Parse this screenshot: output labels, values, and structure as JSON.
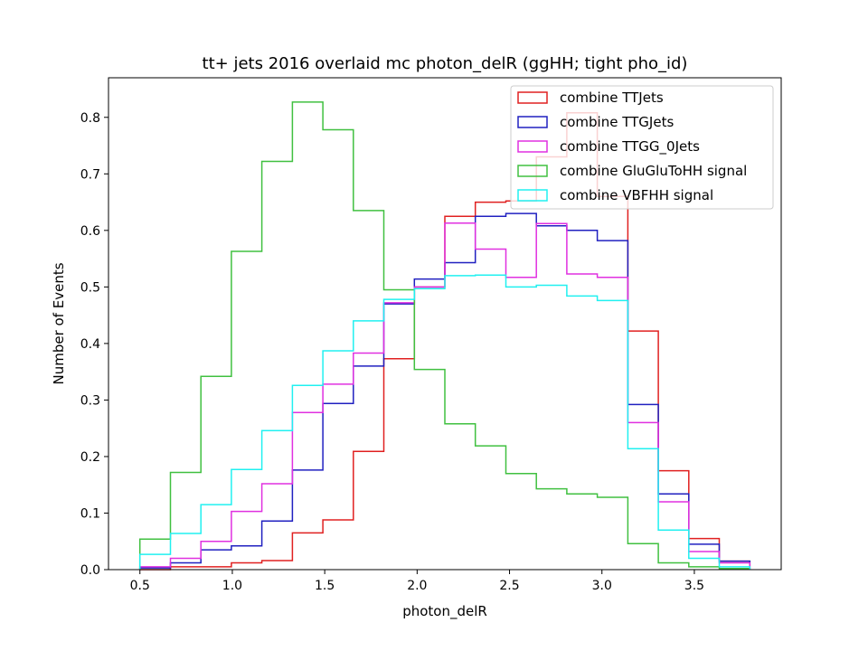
{
  "chart_data": {
    "type": "histogram",
    "title": "tt+ jets 2016 overlaid mc photon_delR (ggHH; tight pho_id)",
    "xlabel": "photon_delR",
    "ylabel": "Number of Events",
    "xlim": [
      0.33,
      3.97
    ],
    "ylim": [
      0.0,
      0.87
    ],
    "xticks": [
      0.5,
      1.0,
      1.5,
      2.0,
      2.5,
      3.0,
      3.5
    ],
    "yticks": [
      0.0,
      0.1,
      0.2,
      0.3,
      0.4,
      0.5,
      0.6,
      0.7,
      0.8
    ],
    "bin_edges": [
      0.5,
      0.665,
      0.83,
      0.995,
      1.16,
      1.325,
      1.49,
      1.655,
      1.82,
      1.985,
      2.15,
      2.315,
      2.48,
      2.645,
      2.81,
      2.975,
      3.14,
      3.305,
      3.47,
      3.635,
      3.8
    ],
    "grid": false,
    "legend_position": "top-right",
    "series": [
      {
        "name": "combine TTJets",
        "color": "#e02020",
        "values": [
          0.0,
          0.005,
          0.005,
          0.012,
          0.016,
          0.065,
          0.088,
          0.209,
          0.373,
          0.5,
          0.625,
          0.65,
          0.652,
          0.73,
          0.808,
          0.66,
          0.422,
          0.175,
          0.055,
          0.015
        ]
      },
      {
        "name": "combine TTGJets",
        "color": "#2020c0",
        "values": [
          0.003,
          0.012,
          0.035,
          0.042,
          0.086,
          0.176,
          0.294,
          0.36,
          0.47,
          0.514,
          0.543,
          0.625,
          0.63,
          0.608,
          0.6,
          0.582,
          0.292,
          0.134,
          0.045,
          0.015
        ]
      },
      {
        "name": "combine TTGG_0Jets",
        "color": "#e030e0",
        "values": [
          0.005,
          0.02,
          0.05,
          0.103,
          0.152,
          0.278,
          0.328,
          0.383,
          0.472,
          0.5,
          0.613,
          0.567,
          0.517,
          0.612,
          0.523,
          0.517,
          0.26,
          0.12,
          0.032,
          0.012
        ]
      },
      {
        "name": "combine GluGluToHH signal",
        "color": "#40c040",
        "values": [
          0.054,
          0.172,
          0.342,
          0.563,
          0.722,
          0.827,
          0.778,
          0.635,
          0.495,
          0.354,
          0.258,
          0.219,
          0.17,
          0.143,
          0.134,
          0.128,
          0.046,
          0.012,
          0.005,
          0.002
        ]
      },
      {
        "name": "combine VBFHH signal",
        "color": "#20f0f0",
        "values": [
          0.027,
          0.064,
          0.115,
          0.177,
          0.246,
          0.326,
          0.387,
          0.44,
          0.478,
          0.497,
          0.52,
          0.521,
          0.5,
          0.503,
          0.484,
          0.476,
          0.214,
          0.07,
          0.02,
          0.005
        ]
      }
    ]
  }
}
